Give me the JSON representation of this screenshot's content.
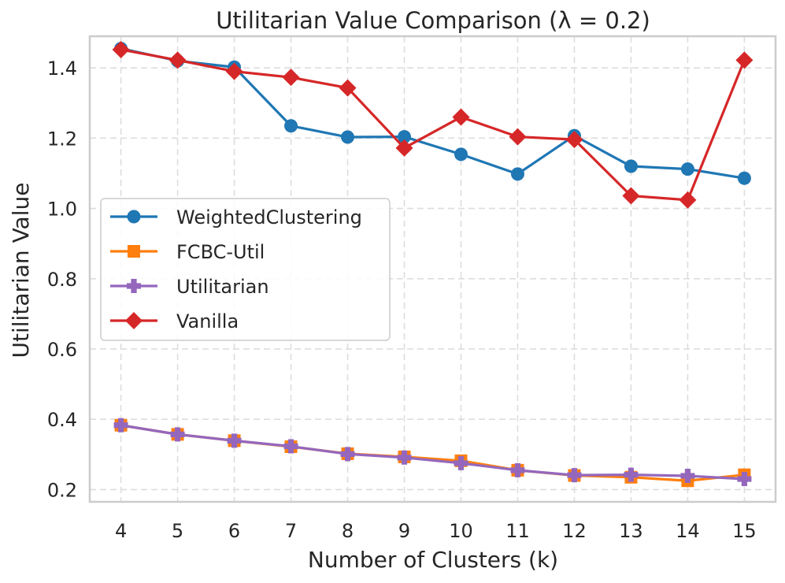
{
  "chart_data": {
    "type": "line",
    "title": "Utilitarian Value Comparison (λ = 0.2)",
    "xlabel": "Number of Clusters (k)",
    "ylabel": "Utilitarian Value",
    "x": [
      4,
      5,
      6,
      7,
      8,
      9,
      10,
      11,
      12,
      13,
      14,
      15
    ],
    "xlim": [
      3.45,
      15.55
    ],
    "ylim": [
      0.165,
      1.49
    ],
    "yticks": [
      0.2,
      0.4,
      0.6,
      0.8,
      1.0,
      1.2,
      1.4
    ],
    "ytick_labels": [
      "0.2",
      "0.4",
      "0.6",
      "0.8",
      "1.0",
      "1.2",
      "1.4"
    ],
    "grid": true,
    "legend_position": "center-left",
    "series": [
      {
        "name": "WeightedClustering",
        "color": "#1f77b4",
        "marker": "circle",
        "values": [
          1.455,
          1.42,
          1.402,
          1.235,
          1.203,
          1.204,
          1.154,
          1.098,
          1.207,
          1.12,
          1.112,
          1.086
        ]
      },
      {
        "name": "FCBC-Util",
        "color": "#ff7f0e",
        "marker": "square",
        "values": [
          0.383,
          0.357,
          0.339,
          0.322,
          0.302,
          0.293,
          0.282,
          0.255,
          0.24,
          0.235,
          0.225,
          0.242
        ]
      },
      {
        "name": "Utilitarian",
        "color": "#9467bd",
        "marker": "plus",
        "values": [
          0.383,
          0.357,
          0.339,
          0.323,
          0.301,
          0.291,
          0.275,
          0.255,
          0.241,
          0.242,
          0.239,
          0.23
        ]
      },
      {
        "name": "Vanilla",
        "color": "#d62728",
        "marker": "diamond",
        "values": [
          1.452,
          1.422,
          1.39,
          1.373,
          1.343,
          1.172,
          1.26,
          1.204,
          1.196,
          1.036,
          1.024,
          1.422
        ]
      }
    ]
  }
}
